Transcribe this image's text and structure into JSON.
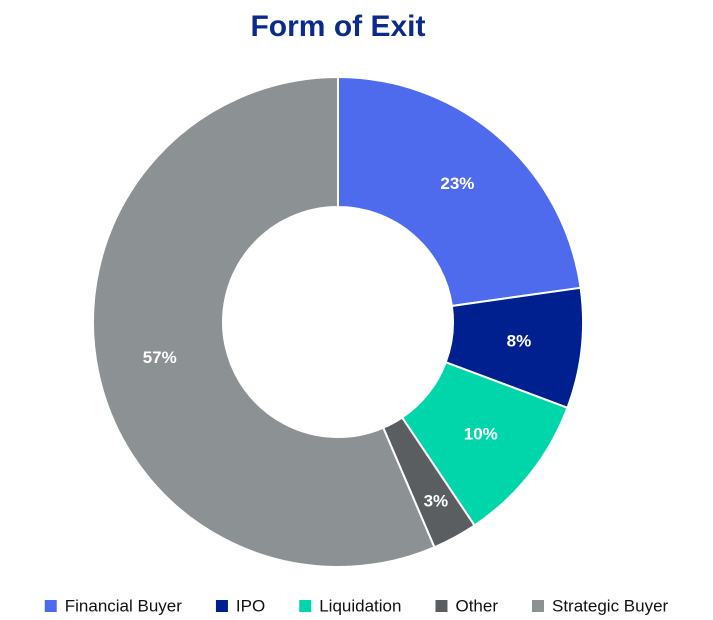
{
  "chart_data": {
    "type": "donut",
    "title": "Form of Exit",
    "categories": [
      "Financial Buyer",
      "IPO",
      "Liquidation",
      "Other",
      "Strategic Buyer"
    ],
    "values": [
      23,
      8,
      10,
      3,
      57
    ],
    "value_labels": [
      "23%",
      "8%",
      "10%",
      "3%",
      "57%"
    ],
    "colors": [
      "#4f6bed",
      "#00208f",
      "#00d6a9",
      "#5b5e61",
      "#8c9194"
    ],
    "legend": "bottom"
  }
}
